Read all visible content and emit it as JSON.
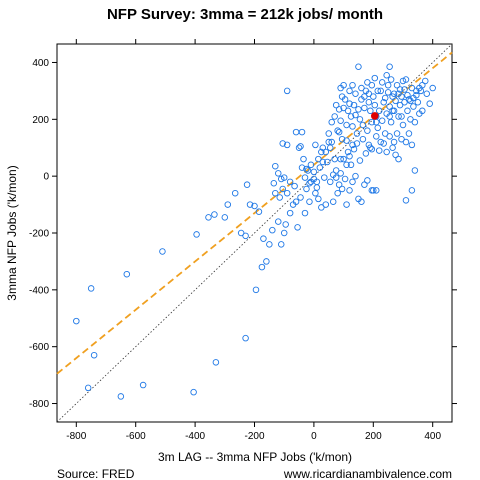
{
  "chart_data": {
    "type": "scatter",
    "title": "NFP Survey: 3mma = 212k jobs/ month",
    "xlabel": "3m LAG -- 3mma NFP Jobs ('k/mon)",
    "ylabel": "3mma NFP Jobs ('k/mon)",
    "xlim": [
      -865,
      465
    ],
    "ylim": [
      -865,
      465
    ],
    "xticks": [
      -800,
      -600,
      -400,
      -200,
      0,
      200,
      400
    ],
    "yticks": [
      -800,
      -600,
      -400,
      -200,
      0,
      200,
      400
    ],
    "source": "Source: FRED",
    "website": "www.ricardianambivalence.com",
    "point_color": "#1f78e6",
    "highlight_color": "#e00000",
    "fit_color": "#f0a020",
    "identity_color": "#333333",
    "fit_line": {
      "intercept": 40,
      "slope": 0.85
    },
    "highlight_point": {
      "x": 205,
      "y": 212
    },
    "points": [
      [
        -800,
        -510
      ],
      [
        -750,
        -395
      ],
      [
        -740,
        -630
      ],
      [
        -760,
        -745
      ],
      [
        -650,
        -775
      ],
      [
        -630,
        -345
      ],
      [
        -575,
        -735
      ],
      [
        -510,
        -265
      ],
      [
        -405,
        -760
      ],
      [
        -395,
        -205
      ],
      [
        -330,
        -655
      ],
      [
        -230,
        -570
      ],
      [
        -195,
        -400
      ],
      [
        -175,
        -320
      ],
      [
        -355,
        -145
      ],
      [
        -335,
        -135
      ],
      [
        -300,
        -145
      ],
      [
        -290,
        -100
      ],
      [
        -265,
        -60
      ],
      [
        -245,
        -200
      ],
      [
        -230,
        -210
      ],
      [
        -225,
        -30
      ],
      [
        -215,
        -100
      ],
      [
        -200,
        -105
      ],
      [
        -185,
        -125
      ],
      [
        -170,
        -220
      ],
      [
        -160,
        -300
      ],
      [
        -150,
        -240
      ],
      [
        -140,
        -190
      ],
      [
        -135,
        -25
      ],
      [
        -130,
        -60
      ],
      [
        -120,
        -160
      ],
      [
        -115,
        -75
      ],
      [
        -110,
        -240
      ],
      [
        -105,
        -45
      ],
      [
        -100,
        -200
      ],
      [
        -95,
        -170
      ],
      [
        -90,
        -60
      ],
      [
        -80,
        -130
      ],
      [
        -70,
        -100
      ],
      [
        -65,
        -35
      ],
      [
        -60,
        -90
      ],
      [
        -55,
        -180
      ],
      [
        -45,
        -75
      ],
      [
        -30,
        -130
      ],
      [
        -25,
        -45
      ],
      [
        -15,
        -90
      ],
      [
        -10,
        -20
      ],
      [
        0,
        -10
      ],
      [
        10,
        -40
      ],
      [
        -130,
        35
      ],
      [
        -120,
        10
      ],
      [
        -110,
        -10
      ],
      [
        -100,
        -5
      ],
      [
        -90,
        110
      ],
      [
        -80,
        -20
      ],
      [
        -60,
        155
      ],
      [
        -50,
        100
      ],
      [
        -40,
        30
      ],
      [
        -30,
        -5
      ],
      [
        -20,
        20
      ],
      [
        -10,
        40
      ],
      [
        0,
        15
      ],
      [
        5,
        110
      ],
      [
        10,
        -20
      ],
      [
        15,
        60
      ],
      [
        20,
        30
      ],
      [
        25,
        85
      ],
      [
        30,
        100
      ],
      [
        35,
        -5
      ],
      [
        40,
        -100
      ],
      [
        45,
        50
      ],
      [
        50,
        150
      ],
      [
        55,
        100
      ],
      [
        60,
        190
      ],
      [
        65,
        -90
      ],
      [
        70,
        60
      ],
      [
        75,
        20
      ],
      [
        80,
        -60
      ],
      [
        85,
        -30
      ],
      [
        90,
        10
      ],
      [
        95,
        -45
      ],
      [
        100,
        60
      ],
      [
        105,
        -10
      ],
      [
        110,
        -100
      ],
      [
        115,
        85
      ],
      [
        120,
        -50
      ],
      [
        125,
        40
      ],
      [
        130,
        -20
      ],
      [
        140,
        0
      ],
      [
        150,
        -80
      ],
      [
        160,
        -90
      ],
      [
        170,
        -30
      ],
      [
        180,
        -15
      ],
      [
        190,
        100
      ],
      [
        195,
        -50
      ],
      [
        200,
        -50
      ],
      [
        -90,
        300
      ],
      [
        -105,
        115
      ],
      [
        -45,
        105
      ],
      [
        -40,
        155
      ],
      [
        70,
        210
      ],
      [
        75,
        250
      ],
      [
        80,
        160
      ],
      [
        85,
        235
      ],
      [
        90,
        195
      ],
      [
        95,
        280
      ],
      [
        100,
        240
      ],
      [
        105,
        270
      ],
      [
        110,
        180
      ],
      [
        115,
        230
      ],
      [
        120,
        255
      ],
      [
        125,
        210
      ],
      [
        130,
        175
      ],
      [
        135,
        250
      ],
      [
        140,
        215
      ],
      [
        145,
        150
      ],
      [
        150,
        235
      ],
      [
        155,
        200
      ],
      [
        160,
        270
      ],
      [
        165,
        180
      ],
      [
        170,
        240
      ],
      [
        175,
        300
      ],
      [
        180,
        160
      ],
      [
        185,
        260
      ],
      [
        190,
        230
      ],
      [
        195,
        190
      ],
      [
        200,
        280
      ],
      [
        205,
        250
      ],
      [
        210,
        210
      ],
      [
        215,
        170
      ],
      [
        220,
        230
      ],
      [
        225,
        300
      ],
      [
        230,
        195
      ],
      [
        235,
        260
      ],
      [
        240,
        150
      ],
      [
        245,
        220
      ],
      [
        250,
        320
      ],
      [
        255,
        245
      ],
      [
        260,
        190
      ],
      [
        265,
        280
      ],
      [
        270,
        230
      ],
      [
        275,
        265
      ],
      [
        280,
        150
      ],
      [
        285,
        290
      ],
      [
        290,
        250
      ],
      [
        295,
        210
      ],
      [
        300,
        180
      ],
      [
        305,
        260
      ],
      [
        310,
        120
      ],
      [
        315,
        230
      ],
      [
        320,
        270
      ],
      [
        325,
        200
      ],
      [
        330,
        310
      ],
      [
        335,
        245
      ],
      [
        340,
        190
      ],
      [
        345,
        285
      ],
      [
        350,
        260
      ],
      [
        355,
        220
      ],
      [
        360,
        300
      ],
      [
        365,
        230
      ],
      [
        375,
        335
      ],
      [
        390,
        255
      ],
      [
        400,
        310
      ],
      [
        150,
        385
      ],
      [
        205,
        345
      ],
      [
        225,
        120
      ],
      [
        255,
        385
      ],
      [
        245,
        355
      ],
      [
        270,
        120
      ],
      [
        280,
        320
      ],
      [
        290,
        305
      ],
      [
        300,
        335
      ],
      [
        310,
        340
      ],
      [
        320,
        150
      ],
      [
        330,
        110
      ],
      [
        130,
        110
      ],
      [
        110,
        125
      ],
      [
        95,
        130
      ],
      [
        85,
        155
      ],
      [
        60,
        120
      ],
      [
        50,
        120
      ],
      [
        40,
        85
      ],
      [
        30,
        50
      ],
      [
        180,
        330
      ],
      [
        195,
        320
      ],
      [
        215,
        300
      ],
      [
        260,
        340
      ],
      [
        230,
        330
      ],
      [
        270,
        290
      ],
      [
        185,
        290
      ],
      [
        170,
        280
      ],
      [
        160,
        310
      ],
      [
        140,
        290
      ],
      [
        120,
        300
      ],
      [
        100,
        320
      ],
      [
        90,
        310
      ],
      [
        130,
        320
      ],
      [
        210,
        190
      ],
      [
        240,
        275
      ],
      [
        250,
        295
      ],
      [
        255,
        210
      ],
      [
        265,
        230
      ],
      [
        285,
        210
      ],
      [
        295,
        280
      ],
      [
        305,
        305
      ],
      [
        315,
        285
      ],
      [
        325,
        265
      ],
      [
        335,
        275
      ],
      [
        345,
        300
      ],
      [
        355,
        310
      ],
      [
        365,
        320
      ],
      [
        380,
        290
      ],
      [
        310,
        -85
      ],
      [
        330,
        -50
      ],
      [
        340,
        20
      ],
      [
        210,
        -50
      ],
      [
        -25,
        25
      ],
      [
        -35,
        60
      ],
      [
        -15,
        -25
      ],
      [
        5,
        -60
      ],
      [
        15,
        -80
      ],
      [
        25,
        -110
      ],
      [
        55,
        -20
      ],
      [
        65,
        5
      ],
      [
        75,
        -5
      ],
      [
        90,
        60
      ],
      [
        110,
        40
      ],
      [
        120,
        70
      ],
      [
        135,
        95
      ],
      [
        145,
        115
      ],
      [
        155,
        55
      ],
      [
        165,
        130
      ],
      [
        175,
        80
      ],
      [
        185,
        110
      ],
      [
        195,
        95
      ],
      [
        210,
        140
      ],
      [
        220,
        90
      ],
      [
        235,
        115
      ],
      [
        245,
        85
      ],
      [
        255,
        140
      ],
      [
        265,
        100
      ],
      [
        275,
        75
      ],
      [
        285,
        60
      ],
      [
        295,
        130
      ]
    ]
  }
}
